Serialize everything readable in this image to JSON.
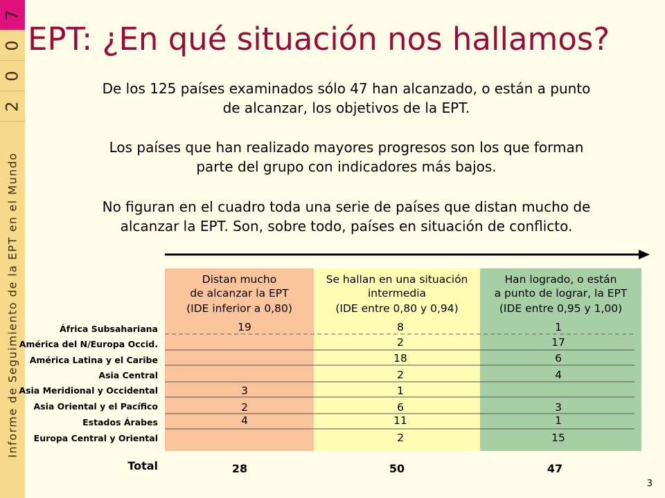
{
  "sidebar": {
    "digits": [
      "7",
      "0",
      "0",
      "2"
    ],
    "vertical_text": "Informe de Seguimiento de la EPT en el Mundo"
  },
  "slide": {
    "title": "EPT: ¿En qué situación nos hallamos?",
    "paragraph1_line1": "De los 125 países examinados sólo 47 han alcanzado, o están a punto",
    "paragraph1_line2": "de alcanzar, los objetivos de la EPT.",
    "paragraph2_line1": "Los países que han realizado mayores progresos son los que forman",
    "paragraph2_line2": "parte del grupo con indicadores más bajos.",
    "paragraph3_line1": "No figuran en el cuadro toda una serie de países que distan mucho de",
    "paragraph3_line2": "alcanzar la EPT. Son, sobre todo, países en situación de conflicto.",
    "page_number": "3"
  },
  "table": {
    "columns": [
      {
        "line1": "Distan mucho",
        "line2": "de alcanzar la EPT",
        "line3": "(IDE inferior a 0,80)"
      },
      {
        "line1": "Se hallan en una situación",
        "line2": "intermedia",
        "line3": "(IDE entre 0,80 y 0,94)"
      },
      {
        "line1": "Han logrado, o están",
        "line2": "a punto de lograr, la EPT",
        "line3": "(IDE entre 0,95 y 1,00)"
      }
    ],
    "rows": [
      {
        "label": "África Subsahariana",
        "values": [
          "19",
          "8",
          "1"
        ]
      },
      {
        "label": "América del N/Europa Occid.",
        "values": [
          "",
          "2",
          "17"
        ]
      },
      {
        "label": "América Latina y el Caribe",
        "values": [
          "",
          "18",
          "6"
        ]
      },
      {
        "label": "Asia Central",
        "values": [
          "",
          "2",
          "4"
        ]
      },
      {
        "label": "Asia Meridional y Occidental",
        "values": [
          "3",
          "1",
          ""
        ]
      },
      {
        "label": "Asia Oriental y el Pacífico",
        "values": [
          "2",
          "6",
          "3"
        ]
      },
      {
        "label": "Estados Árabes",
        "values": [
          "4",
          "11",
          "1"
        ]
      },
      {
        "label": "Europa Central y Oriental",
        "values": [
          "",
          "2",
          "15"
        ]
      }
    ],
    "total_label": "Total",
    "totals": [
      "28",
      "50",
      "47"
    ]
  },
  "colors": {
    "title": "#9b0b3a",
    "band": "#f6d98a",
    "band_active": "#e0117f",
    "col1_bg": "#f9c49b",
    "col2_bg": "#fffcb4",
    "col3_bg": "#a6cfa6",
    "background": "#fffce8"
  }
}
